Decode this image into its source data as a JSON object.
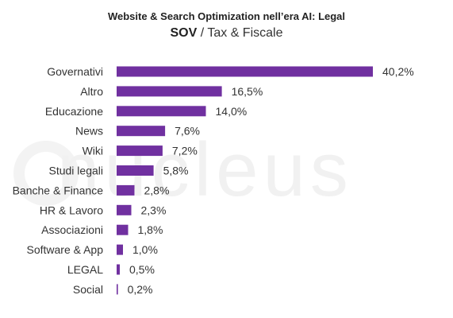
{
  "header": {
    "title": "Website & Search Optimization nell’era AI: Legal",
    "subtitle_strong": "SOV",
    "subtitle_rest": " / Tax & Fiscale"
  },
  "watermark": {
    "text": "nucleus"
  },
  "colors": {
    "bar": "#7030a0",
    "text": "#333333",
    "watermark": "#f1f1f1"
  },
  "chart_data": {
    "type": "bar",
    "orientation": "horizontal",
    "categories": [
      "Governativi",
      "Altro",
      "Educazione",
      "News",
      "Wiki",
      "Studi legali",
      "Banche & Finance",
      "HR & Lavoro",
      "Associazioni",
      "Software & App",
      "LEGAL",
      "Social"
    ],
    "values": [
      40.2,
      16.5,
      14.0,
      7.6,
      7.2,
      5.8,
      2.8,
      2.3,
      1.8,
      1.0,
      0.5,
      0.2
    ],
    "value_labels": [
      "40,2%",
      "16,5%",
      "14,0%",
      "7,6%",
      "7,2%",
      "5,8%",
      "2,8%",
      "2,3%",
      "1,8%",
      "1,0%",
      "0,5%",
      "0,2%"
    ],
    "xlim": [
      0,
      40.2
    ],
    "grid": false,
    "legend": "none"
  }
}
